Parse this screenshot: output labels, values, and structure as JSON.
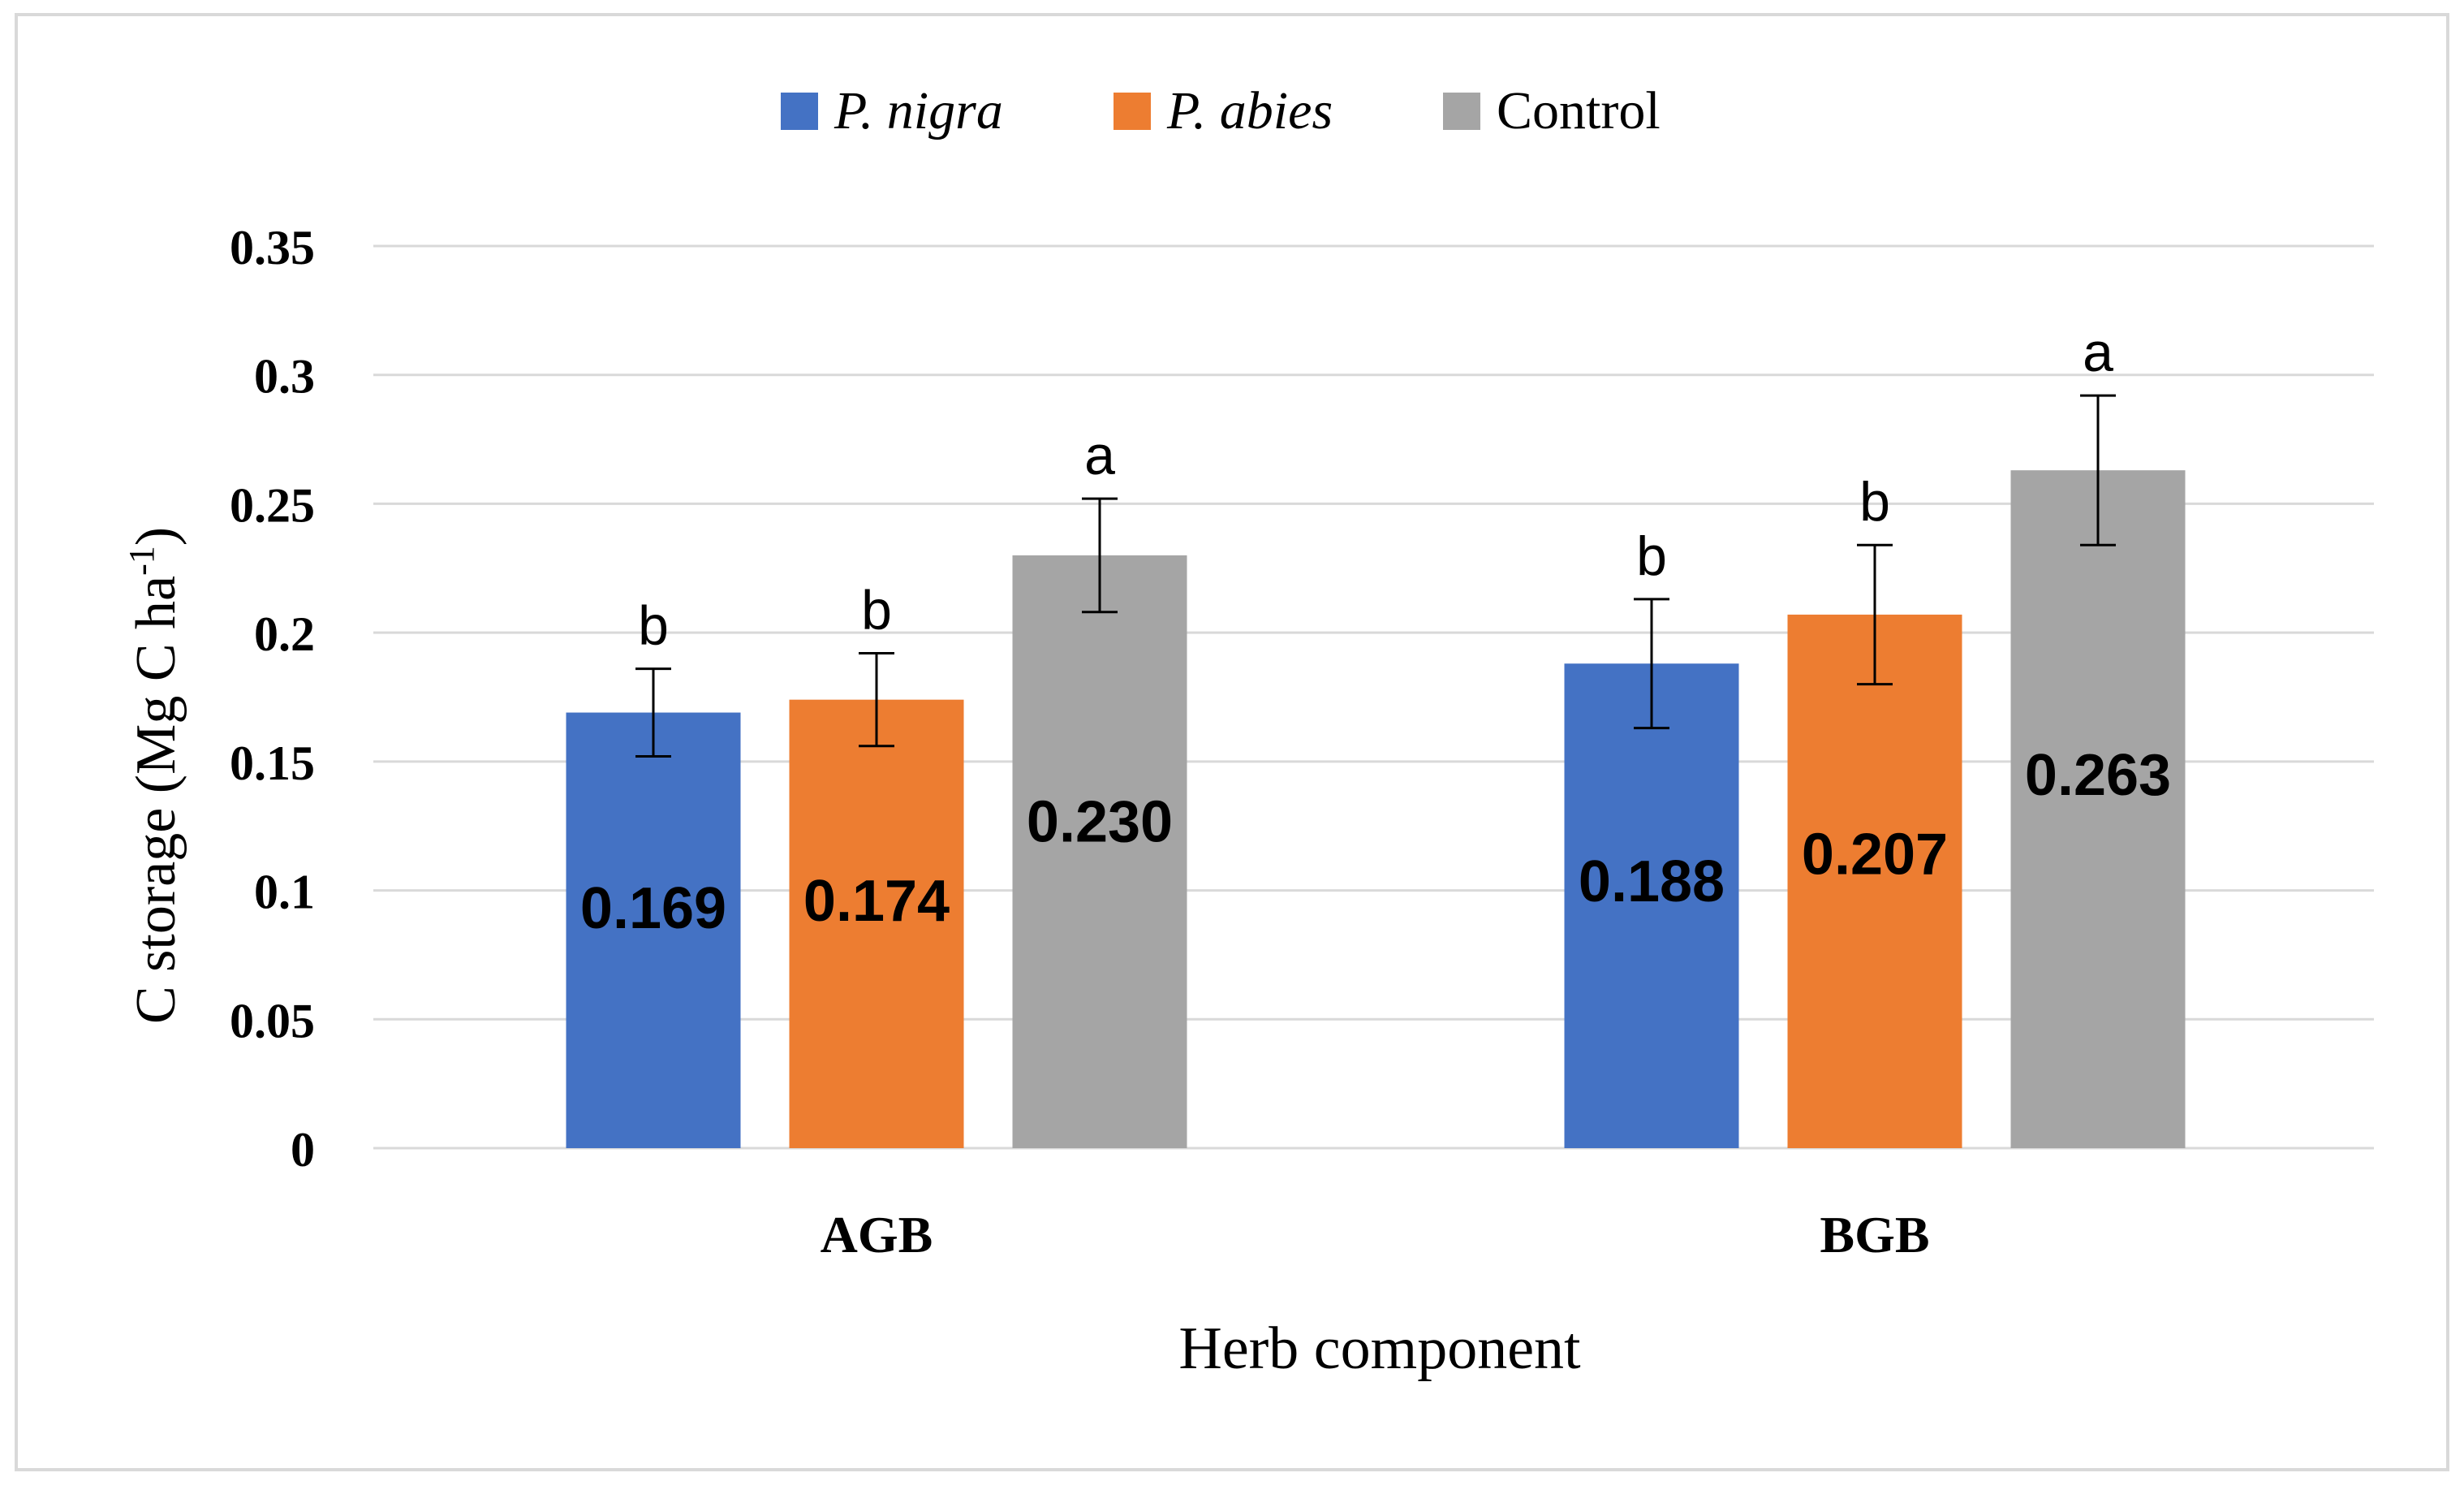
{
  "chart_data": {
    "type": "bar",
    "title": "",
    "xlabel": "Herb component",
    "ylabel": {
      "main": "C storage (Mg C ha",
      "superscript": "-1",
      "close": ")"
    },
    "categories": [
      "AGB",
      "BGB"
    ],
    "ylim": [
      0,
      0.35
    ],
    "yticks": [
      {
        "value": 0,
        "label": "0"
      },
      {
        "value": 0.05,
        "label": "0.05"
      },
      {
        "value": 0.1,
        "label": "0.1"
      },
      {
        "value": 0.15,
        "label": "0.15"
      },
      {
        "value": 0.2,
        "label": "0.2"
      },
      {
        "value": 0.25,
        "label": "0.25"
      },
      {
        "value": 0.3,
        "label": "0.3"
      },
      {
        "value": 0.35,
        "label": "0.35"
      }
    ],
    "grid": true,
    "legend_position": "top-center",
    "series": [
      {
        "name": "P. nigra",
        "italic": true,
        "color": "#4472c4",
        "values": [
          0.169,
          0.188
        ],
        "value_labels": [
          "0.169",
          "0.188"
        ],
        "errors": [
          0.017,
          0.025
        ],
        "letters": [
          "b",
          "b"
        ]
      },
      {
        "name": "P. abies",
        "italic": true,
        "color": "#ed7d31",
        "values": [
          0.174,
          0.207
        ],
        "value_labels": [
          "0.174",
          "0.207"
        ],
        "errors": [
          0.018,
          0.027
        ],
        "letters": [
          "b",
          "b"
        ]
      },
      {
        "name": "Control",
        "italic": false,
        "color": "#a5a5a5",
        "values": [
          0.23,
          0.263
        ],
        "value_labels": [
          "0.230",
          "0.263"
        ],
        "errors": [
          0.022,
          0.029
        ],
        "letters": [
          "a",
          "a"
        ]
      }
    ]
  }
}
